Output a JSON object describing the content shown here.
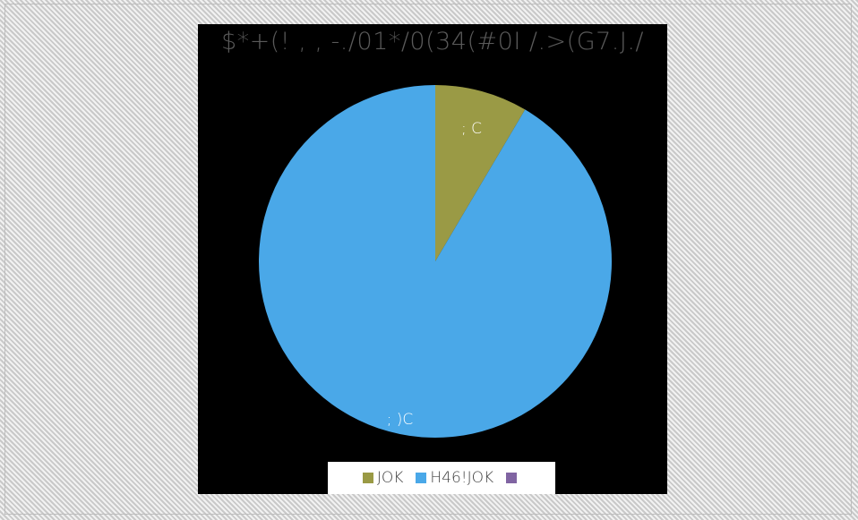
{
  "chart_data": {
    "type": "pie",
    "title": "$*+(! , , -./01*/0(34(#0I /.>(G7.J./",
    "categories": [
      "JOK",
      "H46!JOK",
      ""
    ],
    "values": [
      8.5,
      91.5,
      0
    ],
    "data_labels": [
      "; C",
      "; )C",
      ""
    ],
    "colors": [
      "#9a9a45",
      "#4aa8e8",
      "#8064a2"
    ],
    "start_angle_deg": 0,
    "legend_position": "bottom",
    "background": "#000000"
  }
}
